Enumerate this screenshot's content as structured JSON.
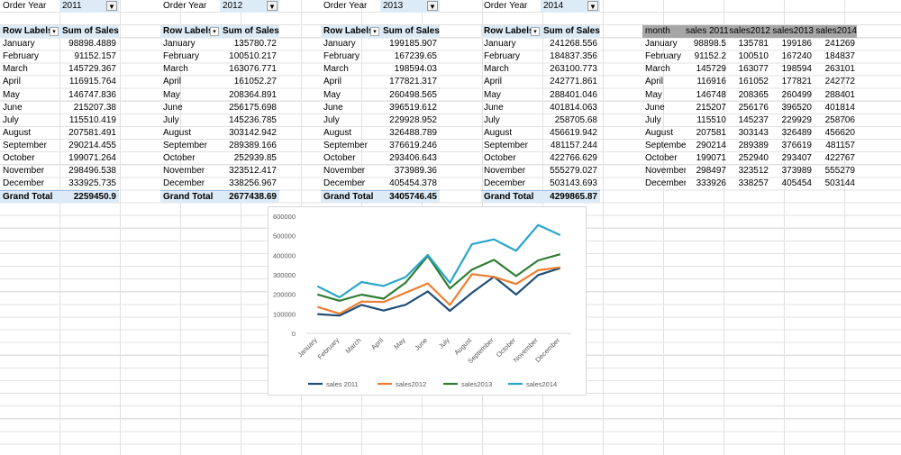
{
  "pivots": [
    {
      "filter_label": "Order Year",
      "filter_value": "2011",
      "row_labels_header": "Row Labels",
      "sum_header": "Sum of Sales",
      "rows": [
        [
          "January",
          "98898.4889"
        ],
        [
          "February",
          "91152.157"
        ],
        [
          "March",
          "145729.367"
        ],
        [
          "April",
          "116915.764"
        ],
        [
          "May",
          "146747.836"
        ],
        [
          "June",
          "215207.38"
        ],
        [
          "July",
          "115510.419"
        ],
        [
          "August",
          "207581.491"
        ],
        [
          "September",
          "290214.455"
        ],
        [
          "October",
          "199071.264"
        ],
        [
          "November",
          "298496.538"
        ],
        [
          "December",
          "333925.735"
        ]
      ],
      "total_label": "Grand Total",
      "total_value": "2259450.9"
    },
    {
      "filter_label": "Order Year",
      "filter_value": "2012",
      "row_labels_header": "Row Labels",
      "sum_header": "Sum of Sales",
      "rows": [
        [
          "January",
          "135780.72"
        ],
        [
          "February",
          "100510.217"
        ],
        [
          "March",
          "163076.771"
        ],
        [
          "April",
          "161052.27"
        ],
        [
          "May",
          "208364.891"
        ],
        [
          "June",
          "256175.698"
        ],
        [
          "July",
          "145236.785"
        ],
        [
          "August",
          "303142.942"
        ],
        [
          "September",
          "289389.166"
        ],
        [
          "October",
          "252939.85"
        ],
        [
          "November",
          "323512.417"
        ],
        [
          "December",
          "338256.967"
        ]
      ],
      "total_label": "Grand Total",
      "total_value": "2677438.69"
    },
    {
      "filter_label": "Order Year",
      "filter_value": "2013",
      "row_labels_header": "Row Labels",
      "sum_header": "Sum of Sales",
      "rows": [
        [
          "January",
          "199185.907"
        ],
        [
          "February",
          "167239.65"
        ],
        [
          "March",
          "198594.03"
        ],
        [
          "April",
          "177821.317"
        ],
        [
          "May",
          "260498.565"
        ],
        [
          "June",
          "396519.612"
        ],
        [
          "July",
          "229928.952"
        ],
        [
          "August",
          "326488.789"
        ],
        [
          "September",
          "376619.246"
        ],
        [
          "October",
          "293406.643"
        ],
        [
          "November",
          "373989.36"
        ],
        [
          "December",
          "405454.378"
        ]
      ],
      "total_label": "Grand Total",
      "total_value": "3405746.45"
    },
    {
      "filter_label": "Order Year",
      "filter_value": "2014",
      "row_labels_header": "Row Labels",
      "sum_header": "Sum of Sales",
      "rows": [
        [
          "January",
          "241268.556"
        ],
        [
          "February",
          "184837.356"
        ],
        [
          "March",
          "263100.773"
        ],
        [
          "April",
          "242771.861"
        ],
        [
          "May",
          "288401.046"
        ],
        [
          "June",
          "401814.063"
        ],
        [
          "July",
          "258705.68"
        ],
        [
          "August",
          "456619.942"
        ],
        [
          "September",
          "481157.244"
        ],
        [
          "October",
          "422766.629"
        ],
        [
          "November",
          "555279.027"
        ],
        [
          "December",
          "503143.693"
        ]
      ],
      "total_label": "Grand Total",
      "total_value": "4299865.87"
    }
  ],
  "summary_table": {
    "headers": [
      "month",
      "sales 2011",
      "sales2012",
      "sales2013",
      "sales2014"
    ],
    "rows": [
      [
        "January",
        "98898.5",
        "135781",
        "199186",
        "241269"
      ],
      [
        "February",
        "91152.2",
        "100510",
        "167240",
        "184837"
      ],
      [
        "March",
        "145729",
        "163077",
        "198594",
        "263101"
      ],
      [
        "April",
        "116916",
        "161052",
        "177821",
        "242772"
      ],
      [
        "May",
        "146748",
        "208365",
        "260499",
        "288401"
      ],
      [
        "June",
        "215207",
        "256176",
        "396520",
        "401814"
      ],
      [
        "July",
        "115510",
        "145237",
        "229929",
        "258706"
      ],
      [
        "August",
        "207581",
        "303143",
        "326489",
        "456620"
      ],
      [
        "September",
        "290214",
        "289389",
        "376619",
        "481157"
      ],
      [
        "October",
        "199071",
        "252940",
        "293407",
        "422767"
      ],
      [
        "November",
        "298497",
        "323512",
        "373989",
        "555279"
      ],
      [
        "December",
        "333926",
        "338257",
        "405454",
        "503144"
      ]
    ]
  },
  "colors": {
    "pivot_header_bg": "#ddebf7",
    "pivot_total_bg": "#ddebf7",
    "summary_header_bg": "#a6a6a6"
  },
  "chart_data": {
    "type": "line",
    "categories": [
      "January",
      "February",
      "March",
      "April",
      "May",
      "June",
      "July",
      "August",
      "September",
      "October",
      "November",
      "December"
    ],
    "series": [
      {
        "name": "sales 2011",
        "color": "#1f4e79",
        "values": [
          98898,
          91152,
          145729,
          116916,
          146748,
          215207,
          115510,
          207581,
          290214,
          199071,
          298497,
          333926
        ]
      },
      {
        "name": "sales2012",
        "color": "#ed7d31",
        "values": [
          135781,
          100510,
          163077,
          161052,
          208365,
          256176,
          145237,
          303143,
          289389,
          252940,
          323512,
          338257
        ]
      },
      {
        "name": "sales2013",
        "color": "#2e7d32",
        "values": [
          199186,
          167240,
          198594,
          177821,
          260499,
          396520,
          229929,
          326489,
          376619,
          293407,
          373989,
          405454
        ]
      },
      {
        "name": "sales2014",
        "color": "#2aa5c9",
        "values": [
          241269,
          184837,
          263101,
          242772,
          288401,
          401814,
          258706,
          456620,
          481157,
          422767,
          555279,
          503144
        ]
      }
    ],
    "yticks": [
      "0",
      "100000",
      "200000",
      "300000",
      "400000",
      "500000",
      "600000"
    ],
    "ylim": [
      0,
      600000
    ],
    "grid": false,
    "legend_position": "bottom"
  }
}
